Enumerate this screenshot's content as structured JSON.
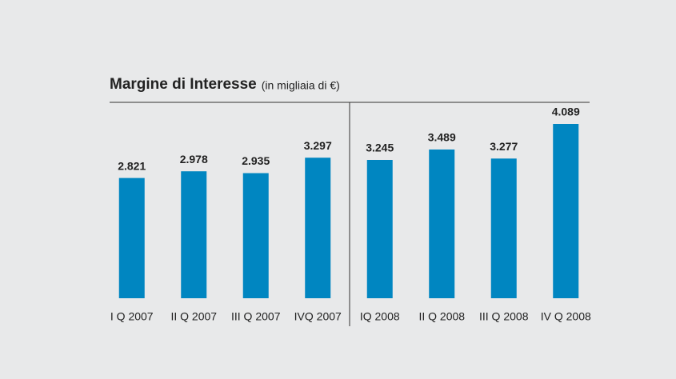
{
  "chart_data": {
    "type": "bar",
    "title": "Margine di Interesse",
    "subtitle": "(in migliaia di €)",
    "categories": [
      "I Q 2007",
      "II Q 2007",
      "III Q 2007",
      "IVQ 2007",
      "IQ 2008",
      "II Q 2008",
      "III Q 2008",
      "IV Q 2008"
    ],
    "values": [
      2821,
      2978,
      2935,
      3297,
      3245,
      3489,
      3277,
      4089
    ],
    "value_labels": [
      "2.821",
      "2.978",
      "2.935",
      "3.297",
      "3.245",
      "3.489",
      "3.277",
      "4.089"
    ],
    "color": "#0086c1"
  }
}
